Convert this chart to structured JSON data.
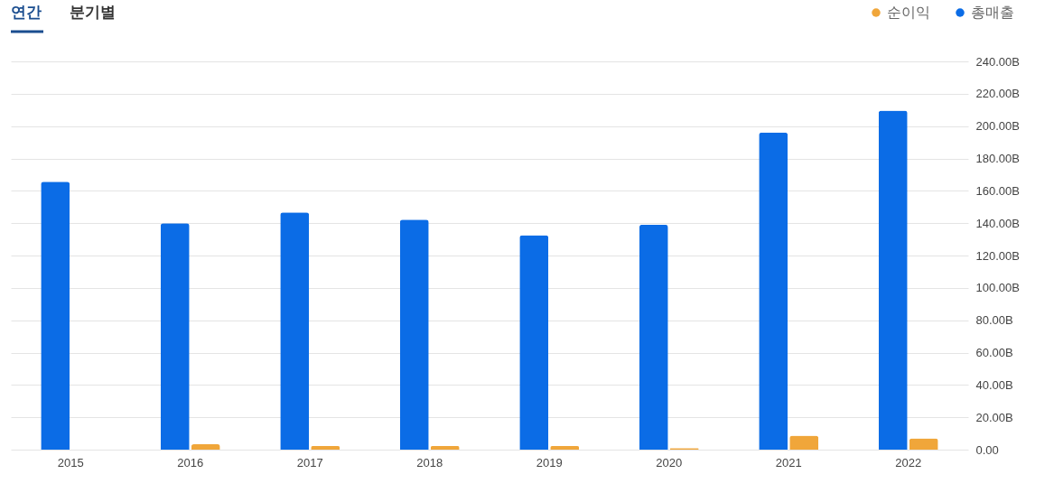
{
  "chart_data": {
    "type": "bar",
    "annotations": [
      "연간",
      "분기별"
    ],
    "categories": [
      "2015",
      "2016",
      "2017",
      "2018",
      "2019",
      "2020",
      "2021",
      "2022"
    ],
    "series": [
      {
        "name": "총매출",
        "color": "#0b6ce6",
        "values": [
          165.6,
          140.0,
          146.6,
          142.2,
          132.5,
          139.0,
          196.0,
          209.6
        ]
      },
      {
        "name": "순이익",
        "color": "#f0a63a",
        "values": [
          null,
          3.3,
          2.2,
          2.2,
          2.2,
          1.0,
          8.7,
          7.0
        ]
      }
    ],
    "ylim": [
      0,
      240
    ],
    "yticks": [
      {
        "value": 0,
        "label": "0.00"
      },
      {
        "value": 20,
        "label": "20.00B"
      },
      {
        "value": 40,
        "label": "40.00B"
      },
      {
        "value": 60,
        "label": "60.00B"
      },
      {
        "value": 80,
        "label": "80.00B"
      },
      {
        "value": 100,
        "label": "100.00B"
      },
      {
        "value": 120,
        "label": "120.00B"
      },
      {
        "value": 140,
        "label": "140.00B"
      },
      {
        "value": 160,
        "label": "160.00B"
      },
      {
        "value": 180,
        "label": "180.00B"
      },
      {
        "value": 200,
        "label": "200.00B"
      },
      {
        "value": 220,
        "label": "220.00B"
      },
      {
        "value": 240,
        "label": "240.00B"
      }
    ],
    "grid": "y",
    "legend": "top right"
  }
}
